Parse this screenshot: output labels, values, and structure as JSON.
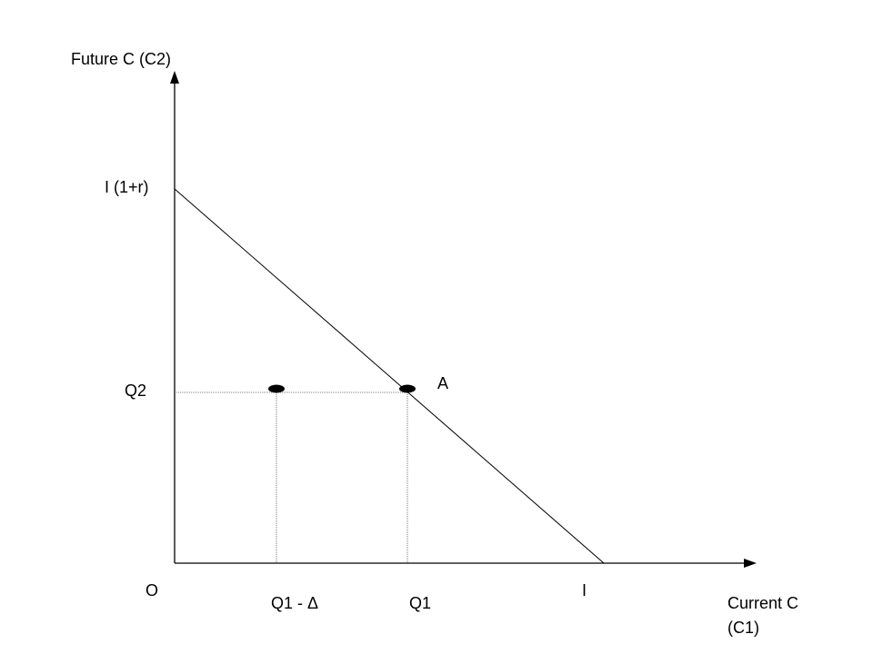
{
  "axes": {
    "y_label": "Future C (C2)",
    "x_label": [
      "Current C",
      "(C1)"
    ],
    "origin": "O"
  },
  "budget_line": {
    "y_intercept": "I (1+r)",
    "x_intercept": "I"
  },
  "points": {
    "y_level": "Q2",
    "point_a": "A",
    "q1": "Q1",
    "q1_minus_delta": "Q1 - Δ"
  }
}
